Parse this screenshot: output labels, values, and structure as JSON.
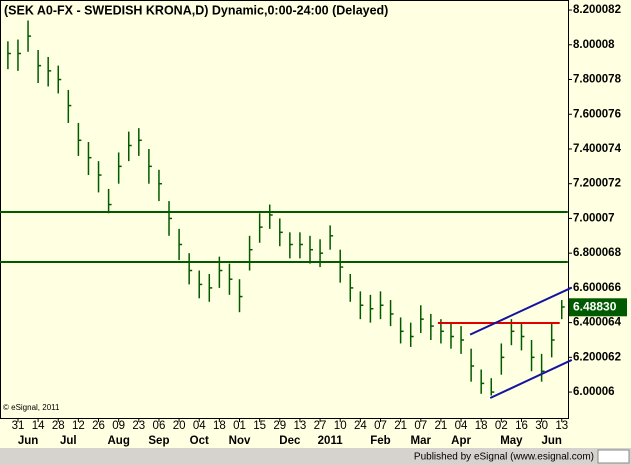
{
  "chart_data": {
    "type": "ohlc",
    "title": "(SEK A0-FX - SWEDISH KRONA,D) Dynamic,0:00-24:00 (Delayed)",
    "copyright": "© eSignal, 2011",
    "categories": [
      null,
      "31",
      null,
      "14",
      null,
      "28",
      null,
      "12",
      null,
      "26",
      null,
      "09",
      null,
      "23",
      null,
      "06",
      null,
      "20",
      null,
      "04",
      null,
      "18",
      null,
      "01",
      null,
      "15",
      null,
      "29",
      null,
      "13",
      null,
      "27",
      null,
      "10",
      null,
      "24",
      null,
      "07",
      null,
      "21",
      null,
      "07",
      null,
      "21",
      null,
      "04",
      null,
      "18",
      null,
      "02",
      null,
      "16",
      null,
      "30",
      null,
      "13"
    ],
    "months": [
      null,
      null,
      "Jun",
      null,
      null,
      null,
      "Jul",
      null,
      null,
      null,
      null,
      "Aug",
      null,
      null,
      null,
      "Sep",
      null,
      null,
      null,
      "Oct",
      null,
      null,
      null,
      "Nov",
      null,
      null,
      null,
      null,
      "Dec",
      null,
      null,
      null,
      "2011",
      null,
      null,
      null,
      null,
      "Feb",
      null,
      null,
      null,
      "Mar",
      null,
      null,
      null,
      "Apr",
      null,
      null,
      null,
      null,
      "May",
      null,
      null,
      null,
      "Jun",
      null
    ],
    "color": "#005a00",
    "high": [
      8.02,
      8.03,
      8.14,
      7.97,
      7.93,
      7.88,
      7.74,
      7.55,
      7.44,
      7.33,
      7.17,
      7.38,
      7.5,
      7.52,
      7.4,
      7.28,
      7.1,
      6.94,
      6.8,
      6.7,
      6.68,
      6.78,
      6.74,
      6.65,
      6.9,
      7.03,
      7.08,
      7.0,
      6.92,
      6.92,
      6.9,
      6.88,
      6.96,
      6.82,
      6.68,
      6.58,
      6.56,
      6.58,
      6.53,
      6.43,
      6.4,
      6.5,
      6.45,
      6.42,
      6.4,
      6.38,
      6.25,
      6.13,
      6.08,
      6.28,
      6.42,
      6.4,
      6.3,
      6.22,
      6.4,
      6.53
    ],
    "low": [
      7.86,
      7.85,
      7.96,
      7.78,
      7.76,
      7.72,
      7.55,
      7.36,
      7.25,
      7.15,
      7.03,
      7.2,
      7.33,
      7.36,
      7.2,
      7.1,
      6.9,
      6.76,
      6.62,
      6.54,
      6.52,
      6.6,
      6.56,
      6.46,
      6.7,
      6.86,
      6.94,
      6.84,
      6.77,
      6.77,
      6.74,
      6.72,
      6.82,
      6.63,
      6.52,
      6.42,
      6.4,
      6.42,
      6.38,
      6.28,
      6.26,
      6.34,
      6.3,
      6.28,
      6.25,
      6.22,
      6.06,
      5.99,
      5.98,
      6.1,
      6.27,
      6.24,
      6.12,
      6.06,
      6.2,
      6.42
    ],
    "close": [
      7.95,
      7.95,
      8.05,
      7.88,
      7.85,
      7.8,
      7.65,
      7.45,
      7.35,
      7.25,
      7.08,
      7.3,
      7.42,
      7.45,
      7.3,
      7.2,
      7.0,
      6.85,
      6.7,
      6.62,
      6.6,
      6.7,
      6.65,
      6.55,
      6.82,
      6.95,
      7.02,
      6.92,
      6.85,
      6.85,
      6.82,
      6.8,
      6.9,
      6.72,
      6.6,
      6.5,
      6.48,
      6.5,
      6.45,
      6.35,
      6.32,
      6.42,
      6.38,
      6.35,
      6.32,
      6.3,
      6.15,
      6.05,
      6.0,
      6.2,
      6.35,
      6.32,
      6.2,
      6.12,
      6.3,
      6.49
    ],
    "ylim": [
      5.868,
      8.258
    ],
    "yticks": [
      8.200082,
      8.00008,
      7.800078,
      7.600076,
      7.400074,
      7.200072,
      7.00007,
      6.800068,
      6.600066,
      6.400064,
      6.200062,
      6.00006
    ],
    "last_price": {
      "value": 6.4883,
      "label": "6.48830"
    },
    "trend_lines": [
      {
        "color": "#005a00",
        "x": [
          -0.8,
          55.6
        ],
        "values": [
          7.037,
          7.037
        ]
      },
      {
        "color": "#005a00",
        "x": [
          -0.8,
          55.6
        ],
        "values": [
          6.749,
          6.749
        ]
      },
      {
        "color": "#e00000",
        "x": [
          42.7,
          54.8
        ],
        "values": [
          6.398,
          6.398
        ]
      },
      {
        "color": "#1414a0",
        "x": [
          45.9,
          56.0
        ],
        "values": [
          6.331,
          6.602
        ]
      },
      {
        "color": "#1414a0",
        "x": [
          47.9,
          56.0
        ],
        "values": [
          5.966,
          6.185
        ]
      }
    ]
  },
  "footer": {
    "text": "Published by eSignal (www.esignal.com)"
  }
}
